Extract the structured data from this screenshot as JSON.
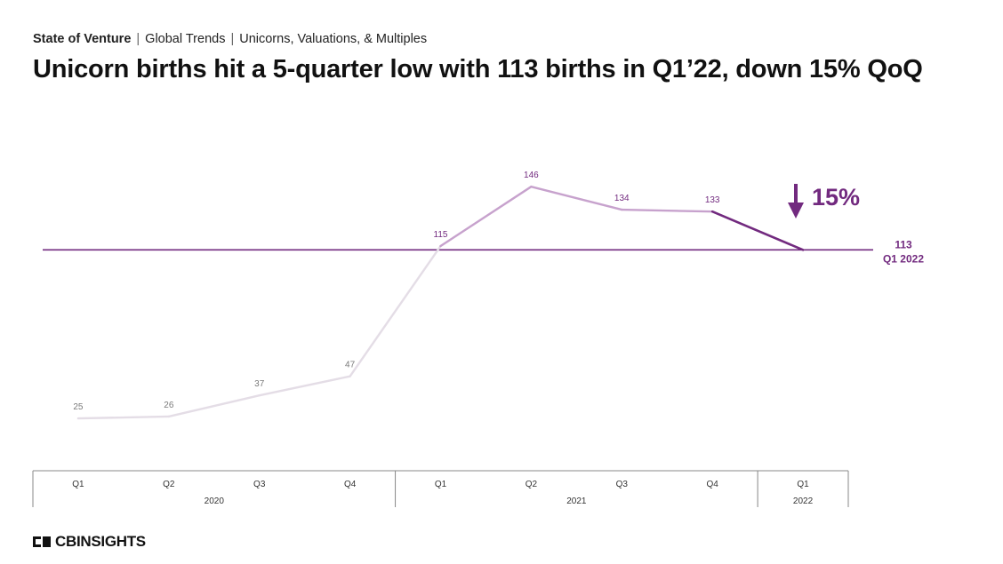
{
  "breadcrumb": {
    "section": "State of Venture",
    "sub1": "Global Trends",
    "sub2": "Unicorns, Valuations, & Multiples"
  },
  "headline": "Unicorn births hit a 5-quarter low with 113 births in Q1’22, down 15% QoQ",
  "colors": {
    "early_line": "#e4dde6",
    "mid_line": "#c7a2cd",
    "accent": "#722a7f",
    "label_gray": "#7a7a7a",
    "axis": "#888888"
  },
  "chart_data": {
    "type": "line",
    "title": "Unicorn births hit a 5-quarter low with 113 births in Q1’22, down 15% QoQ",
    "categories": [
      "Q1",
      "Q2",
      "Q3",
      "Q4",
      "Q1",
      "Q2",
      "Q3",
      "Q4",
      "Q1"
    ],
    "year_groups": [
      {
        "label": "2020",
        "count": 4
      },
      {
        "label": "2021",
        "count": 4
      },
      {
        "label": "2022",
        "count": 1
      }
    ],
    "series": [
      {
        "values": [
          25,
          26,
          37,
          47,
          115,
          146,
          134,
          133,
          113
        ]
      }
    ],
    "data_labels": [
      "25",
      "26",
      "37",
      "47",
      "115",
      "146",
      "134",
      "133"
    ],
    "reference_line": {
      "value": 113,
      "label_value": "113",
      "label_period": "Q1 2022"
    },
    "change_annotation": {
      "text": "15%",
      "direction": "down"
    },
    "ylim": [
      0,
      160
    ],
    "grid": false,
    "legend": "none",
    "xlabel": "",
    "ylabel": ""
  },
  "logo": {
    "text": "CBINSIGHTS"
  }
}
